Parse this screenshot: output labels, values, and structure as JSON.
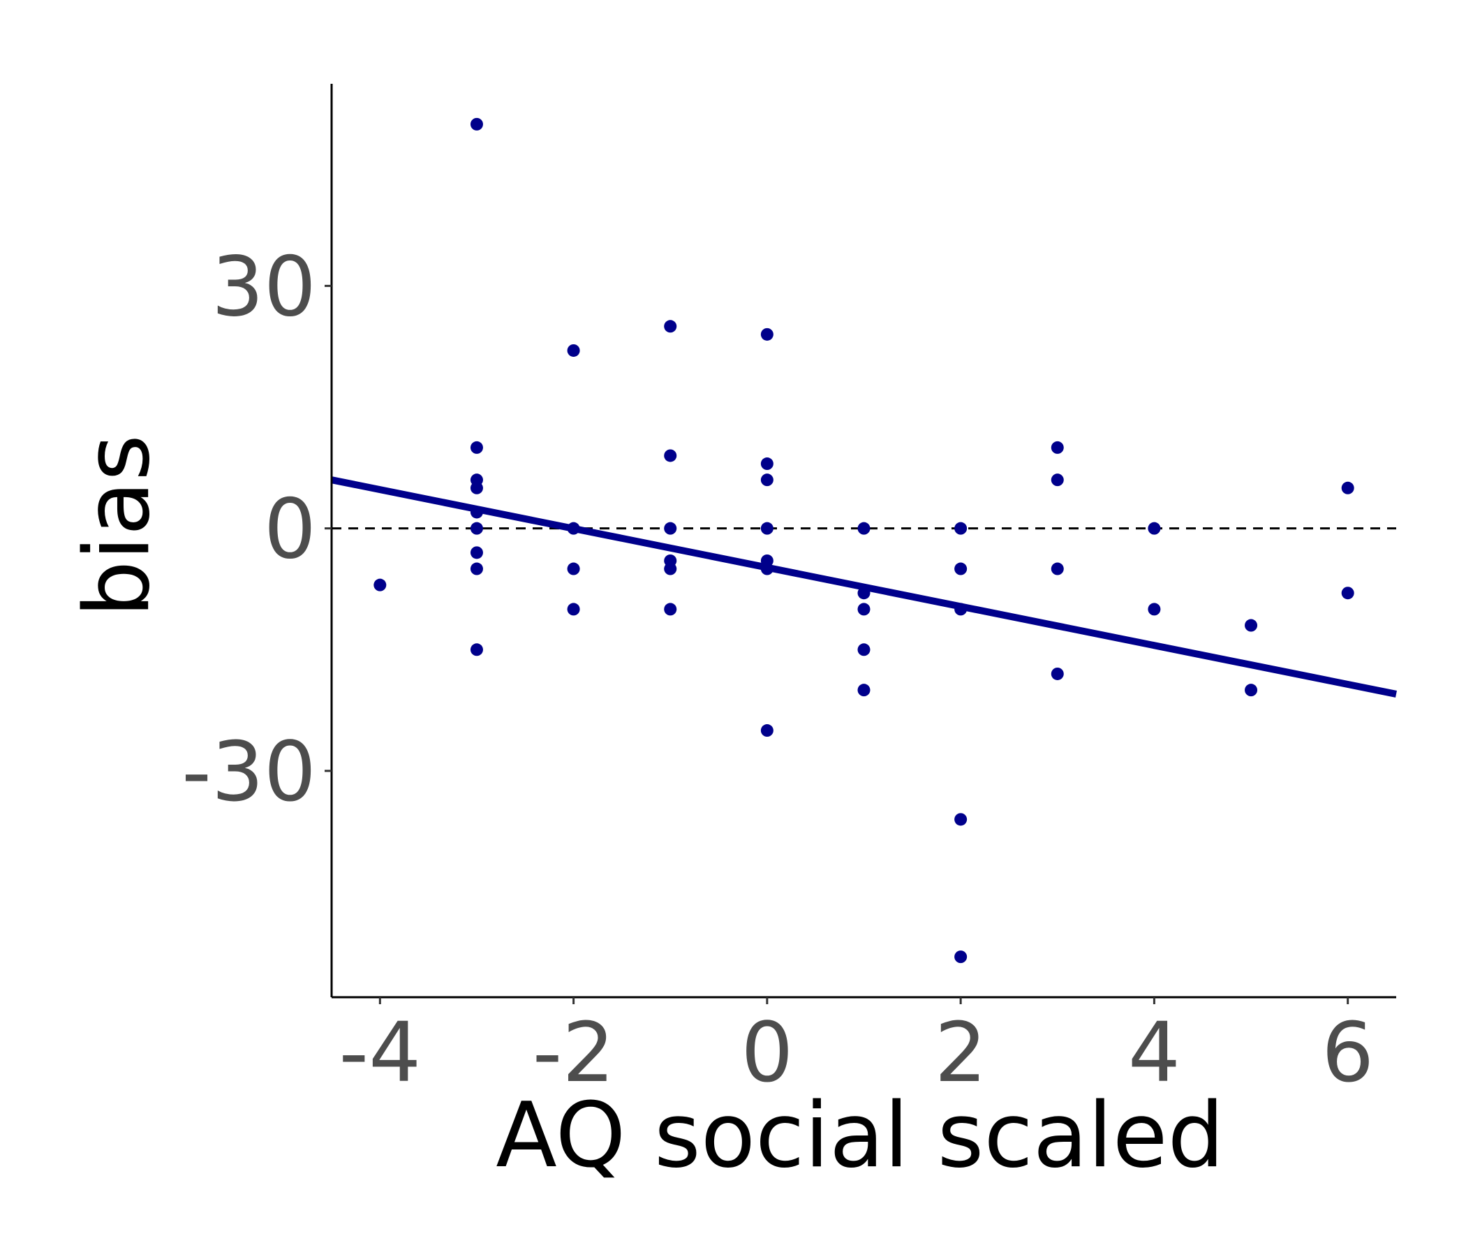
{
  "chart_data": {
    "type": "scatter",
    "title": "",
    "xlabel": "AQ social scaled",
    "ylabel": "bias",
    "xlim": [
      -4.5,
      6.5
    ],
    "ylim": [
      -58,
      55
    ],
    "x_ticks": [
      -4,
      -2,
      0,
      2,
      4,
      6
    ],
    "x_tick_labels": [
      "-4",
      "-2",
      "0",
      "2",
      "4",
      "6"
    ],
    "y_ticks": [
      -30,
      0,
      30
    ],
    "y_tick_labels": [
      "-30",
      "0",
      "30"
    ],
    "grid": false,
    "reference_line": {
      "y": 0,
      "style": "dashed"
    },
    "regression_line": {
      "x": [
        -4.5,
        6.5
      ],
      "y": [
        6,
        -20.5
      ]
    },
    "points": [
      {
        "x": -4,
        "y": -7
      },
      {
        "x": -3,
        "y": 50
      },
      {
        "x": -3,
        "y": 10
      },
      {
        "x": -3,
        "y": 6
      },
      {
        "x": -3,
        "y": 5
      },
      {
        "x": -3,
        "y": 2
      },
      {
        "x": -3,
        "y": 0
      },
      {
        "x": -3,
        "y": -3
      },
      {
        "x": -3,
        "y": -5
      },
      {
        "x": -3,
        "y": -15
      },
      {
        "x": -2,
        "y": 22
      },
      {
        "x": -2,
        "y": 0
      },
      {
        "x": -2,
        "y": -5
      },
      {
        "x": -2,
        "y": -10
      },
      {
        "x": -1,
        "y": 25
      },
      {
        "x": -1,
        "y": 9
      },
      {
        "x": -1,
        "y": 0
      },
      {
        "x": -1,
        "y": -4
      },
      {
        "x": -1,
        "y": -5
      },
      {
        "x": -1,
        "y": -10
      },
      {
        "x": 0,
        "y": 24
      },
      {
        "x": 0,
        "y": 8
      },
      {
        "x": 0,
        "y": 6
      },
      {
        "x": 0,
        "y": 0
      },
      {
        "x": 0,
        "y": -4
      },
      {
        "x": 0,
        "y": -5
      },
      {
        "x": 0,
        "y": -25
      },
      {
        "x": 1,
        "y": 0
      },
      {
        "x": 1,
        "y": -8
      },
      {
        "x": 1,
        "y": -10
      },
      {
        "x": 1,
        "y": -15
      },
      {
        "x": 1,
        "y": -20
      },
      {
        "x": 2,
        "y": 0
      },
      {
        "x": 2,
        "y": -5
      },
      {
        "x": 2,
        "y": -10
      },
      {
        "x": 2,
        "y": -36
      },
      {
        "x": 2,
        "y": -53
      },
      {
        "x": 3,
        "y": 10
      },
      {
        "x": 3,
        "y": 6
      },
      {
        "x": 3,
        "y": -5
      },
      {
        "x": 3,
        "y": -18
      },
      {
        "x": 4,
        "y": 0
      },
      {
        "x": 4,
        "y": -10
      },
      {
        "x": 5,
        "y": -12
      },
      {
        "x": 5,
        "y": -20
      },
      {
        "x": 6,
        "y": 5
      },
      {
        "x": 6,
        "y": -8
      }
    ],
    "colors": {
      "points": "#00008b",
      "line": "#00008b",
      "axis": "#000000",
      "ticks_text": "#4d4d4d"
    }
  }
}
